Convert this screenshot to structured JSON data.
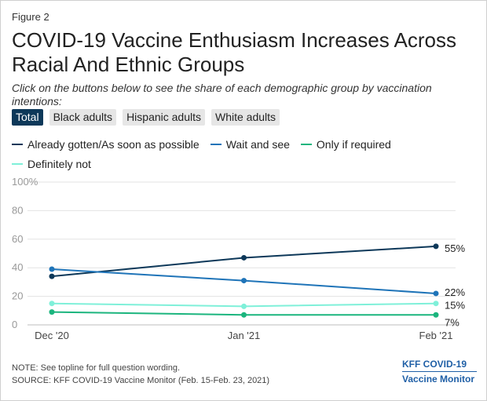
{
  "figure_label": "Figure 2",
  "title": "COVID-19 Vaccine Enthusiasm Increases Across Racial And Ethnic Groups",
  "subtitle": "Click on the buttons below to see the share of each demographic group by vaccination intentions:",
  "tabs": [
    {
      "label": "Total",
      "active": true
    },
    {
      "label": "Black adults",
      "active": false
    },
    {
      "label": "Hispanic adults",
      "active": false
    },
    {
      "label": "White adults",
      "active": false
    }
  ],
  "note": "NOTE: See topline for full question wording.",
  "source": "SOURCE: KFF COVID-19 Vaccine Monitor (Feb. 15-Feb. 23, 2021)",
  "logo": {
    "line1": "KFF COVID-19",
    "line2": "Vaccine Monitor"
  },
  "colors": {
    "already": "#0d3859",
    "wait": "#1f74b8",
    "required": "#1cb57e",
    "not": "#7ff0d9",
    "grid": "#e3e3e3",
    "axis_text": "#999999"
  },
  "chart_data": {
    "type": "line",
    "categories": [
      "Dec '20",
      "Jan '21",
      "Feb '21"
    ],
    "y_ticks": [
      "0",
      "20",
      "40",
      "60",
      "80",
      "100%"
    ],
    "ylim": [
      0,
      100
    ],
    "grid": true,
    "legend_position": "top",
    "series": [
      {
        "name": "Already gotten/As soon as possible",
        "color_key": "already",
        "values": [
          34,
          47,
          55
        ],
        "end_label": "55%"
      },
      {
        "name": "Wait and see",
        "color_key": "wait",
        "values": [
          39,
          31,
          22
        ],
        "end_label": "22%"
      },
      {
        "name": "Only if required",
        "color_key": "required",
        "values": [
          9,
          7,
          7
        ],
        "end_label": "7%"
      },
      {
        "name": "Definitely not",
        "color_key": "not",
        "values": [
          15,
          13,
          15
        ],
        "end_label": "15%"
      }
    ]
  }
}
